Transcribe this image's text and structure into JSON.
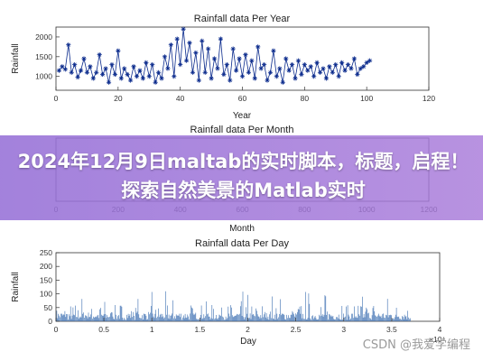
{
  "chart_data": [
    {
      "type": "line",
      "title": "Rainfall data Per Year",
      "xlabel": "Year",
      "ylabel": "Rainfall",
      "xlim": [
        0,
        120
      ],
      "ylim": [
        650,
        2250
      ],
      "xticks": [
        0,
        20,
        40,
        60,
        80,
        100,
        120
      ],
      "yticks": [
        1000,
        1500,
        2000
      ],
      "marker": "asterisk",
      "color": "#0a2a8c",
      "series": [
        {
          "values": [
            1150,
            1250,
            1180,
            1800,
            1100,
            1300,
            980,
            1150,
            1450,
            1100,
            1250,
            950,
            1100,
            1550,
            1050,
            1200,
            850,
            1300,
            1050,
            1650,
            950,
            1200,
            1050,
            900,
            1250,
            1000,
            1150,
            950,
            1350,
            1000,
            1300,
            850,
            1100,
            950,
            1500,
            1200,
            1800,
            1000,
            1950,
            1300,
            2200,
            1400,
            1850,
            1100,
            1600,
            900,
            1900,
            1100,
            1700,
            950,
            1450,
            1200,
            1950,
            1050,
            1300,
            900,
            1700,
            1150,
            1450,
            1000,
            1550,
            1100,
            1400,
            950,
            1750,
            1200,
            1300,
            900,
            1100,
            1650,
            1000,
            1200,
            850,
            1450,
            1150,
            1300,
            950,
            1400,
            1050,
            1300,
            1150,
            1250,
            1000,
            1350,
            1100,
            1200,
            950,
            1250,
            1100,
            1300,
            1000,
            1350,
            1150,
            1300,
            1200,
            1450,
            1050,
            1200,
            1250,
            1350,
            1400
          ],
          "x_start": 1
        }
      ]
    },
    {
      "type": "line",
      "title": "Rainfall data Per Month",
      "xlabel": "Month",
      "xlim": [
        0,
        1200
      ],
      "xticks": [
        0,
        200,
        400,
        600,
        800,
        1000,
        1200
      ],
      "color": "#0a2a8c",
      "series": [
        {
          "values": [],
          "x_start": 1
        }
      ]
    },
    {
      "type": "bar",
      "title": "Rainfall data Per Day",
      "xlabel": "Day",
      "ylabel": "Rainfall",
      "xlim": [
        0,
        4
      ],
      "ylim": [
        0,
        250
      ],
      "xticks": [
        0,
        0.5,
        1,
        1.5,
        2,
        2.5,
        3,
        3.5,
        4
      ],
      "xtick_labels": [
        "0",
        "0.5",
        "1",
        "1.5",
        "2",
        "2.5",
        "3",
        "3.5",
        "4"
      ],
      "x_exponent": "×10⁴",
      "yticks": [
        0,
        50,
        100,
        150,
        200,
        250
      ],
      "color": "#3a6db0",
      "series": [
        {
          "values": [],
          "x_start": 0,
          "x_end": 3.7
        }
      ]
    }
  ],
  "banner": {
    "title": "2024年12月9日maltab的实时脚本，标题，启程！探索自然美景的Matlab实时"
  },
  "watermark": "CSDN @我爱学编程"
}
